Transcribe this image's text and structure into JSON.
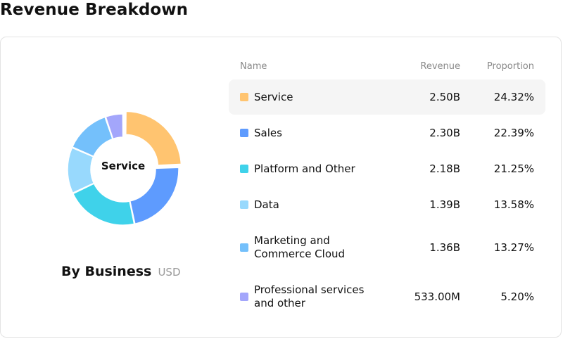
{
  "page": {
    "title": "Revenue Breakdown"
  },
  "chart": {
    "center_label": "Service",
    "caption": "By Business",
    "unit": "USD"
  },
  "table": {
    "headers": {
      "name": "Name",
      "revenue": "Revenue",
      "proportion": "Proportion"
    },
    "rows": [
      {
        "name_lines": [
          "Service"
        ],
        "revenue": "2.50B",
        "proportion": "24.32%",
        "color": "#FFC470",
        "highlighted": true
      },
      {
        "name_lines": [
          "Sales"
        ],
        "revenue": "2.30B",
        "proportion": "22.39%",
        "color": "#5E9BFE",
        "highlighted": false
      },
      {
        "name_lines": [
          "Platform and Other"
        ],
        "revenue": "2.18B",
        "proportion": "21.25%",
        "color": "#3FD2EA",
        "highlighted": false
      },
      {
        "name_lines": [
          "Data"
        ],
        "revenue": "1.39B",
        "proportion": "13.58%",
        "color": "#98D9FD",
        "highlighted": false
      },
      {
        "name_lines": [
          "Marketing and",
          "Commerce Cloud"
        ],
        "revenue": "1.36B",
        "proportion": "13.27%",
        "color": "#74C0FB",
        "highlighted": false
      },
      {
        "name_lines": [
          "Professional services",
          "and other"
        ],
        "revenue": "533.00M",
        "proportion": "5.20%",
        "color": "#A3A6FB",
        "highlighted": false
      }
    ]
  },
  "chart_data": {
    "type": "pie",
    "variant": "donut",
    "categories": [
      "Service",
      "Sales",
      "Platform and Other",
      "Data",
      "Marketing and Commerce Cloud",
      "Professional services and other"
    ],
    "values": [
      24.32,
      22.39,
      21.25,
      13.58,
      13.27,
      5.2
    ],
    "colors": [
      "#FFC470",
      "#5E9BFE",
      "#3FD2EA",
      "#98D9FD",
      "#74C0FB",
      "#A3A6FB"
    ],
    "highlighted": "Service"
  }
}
